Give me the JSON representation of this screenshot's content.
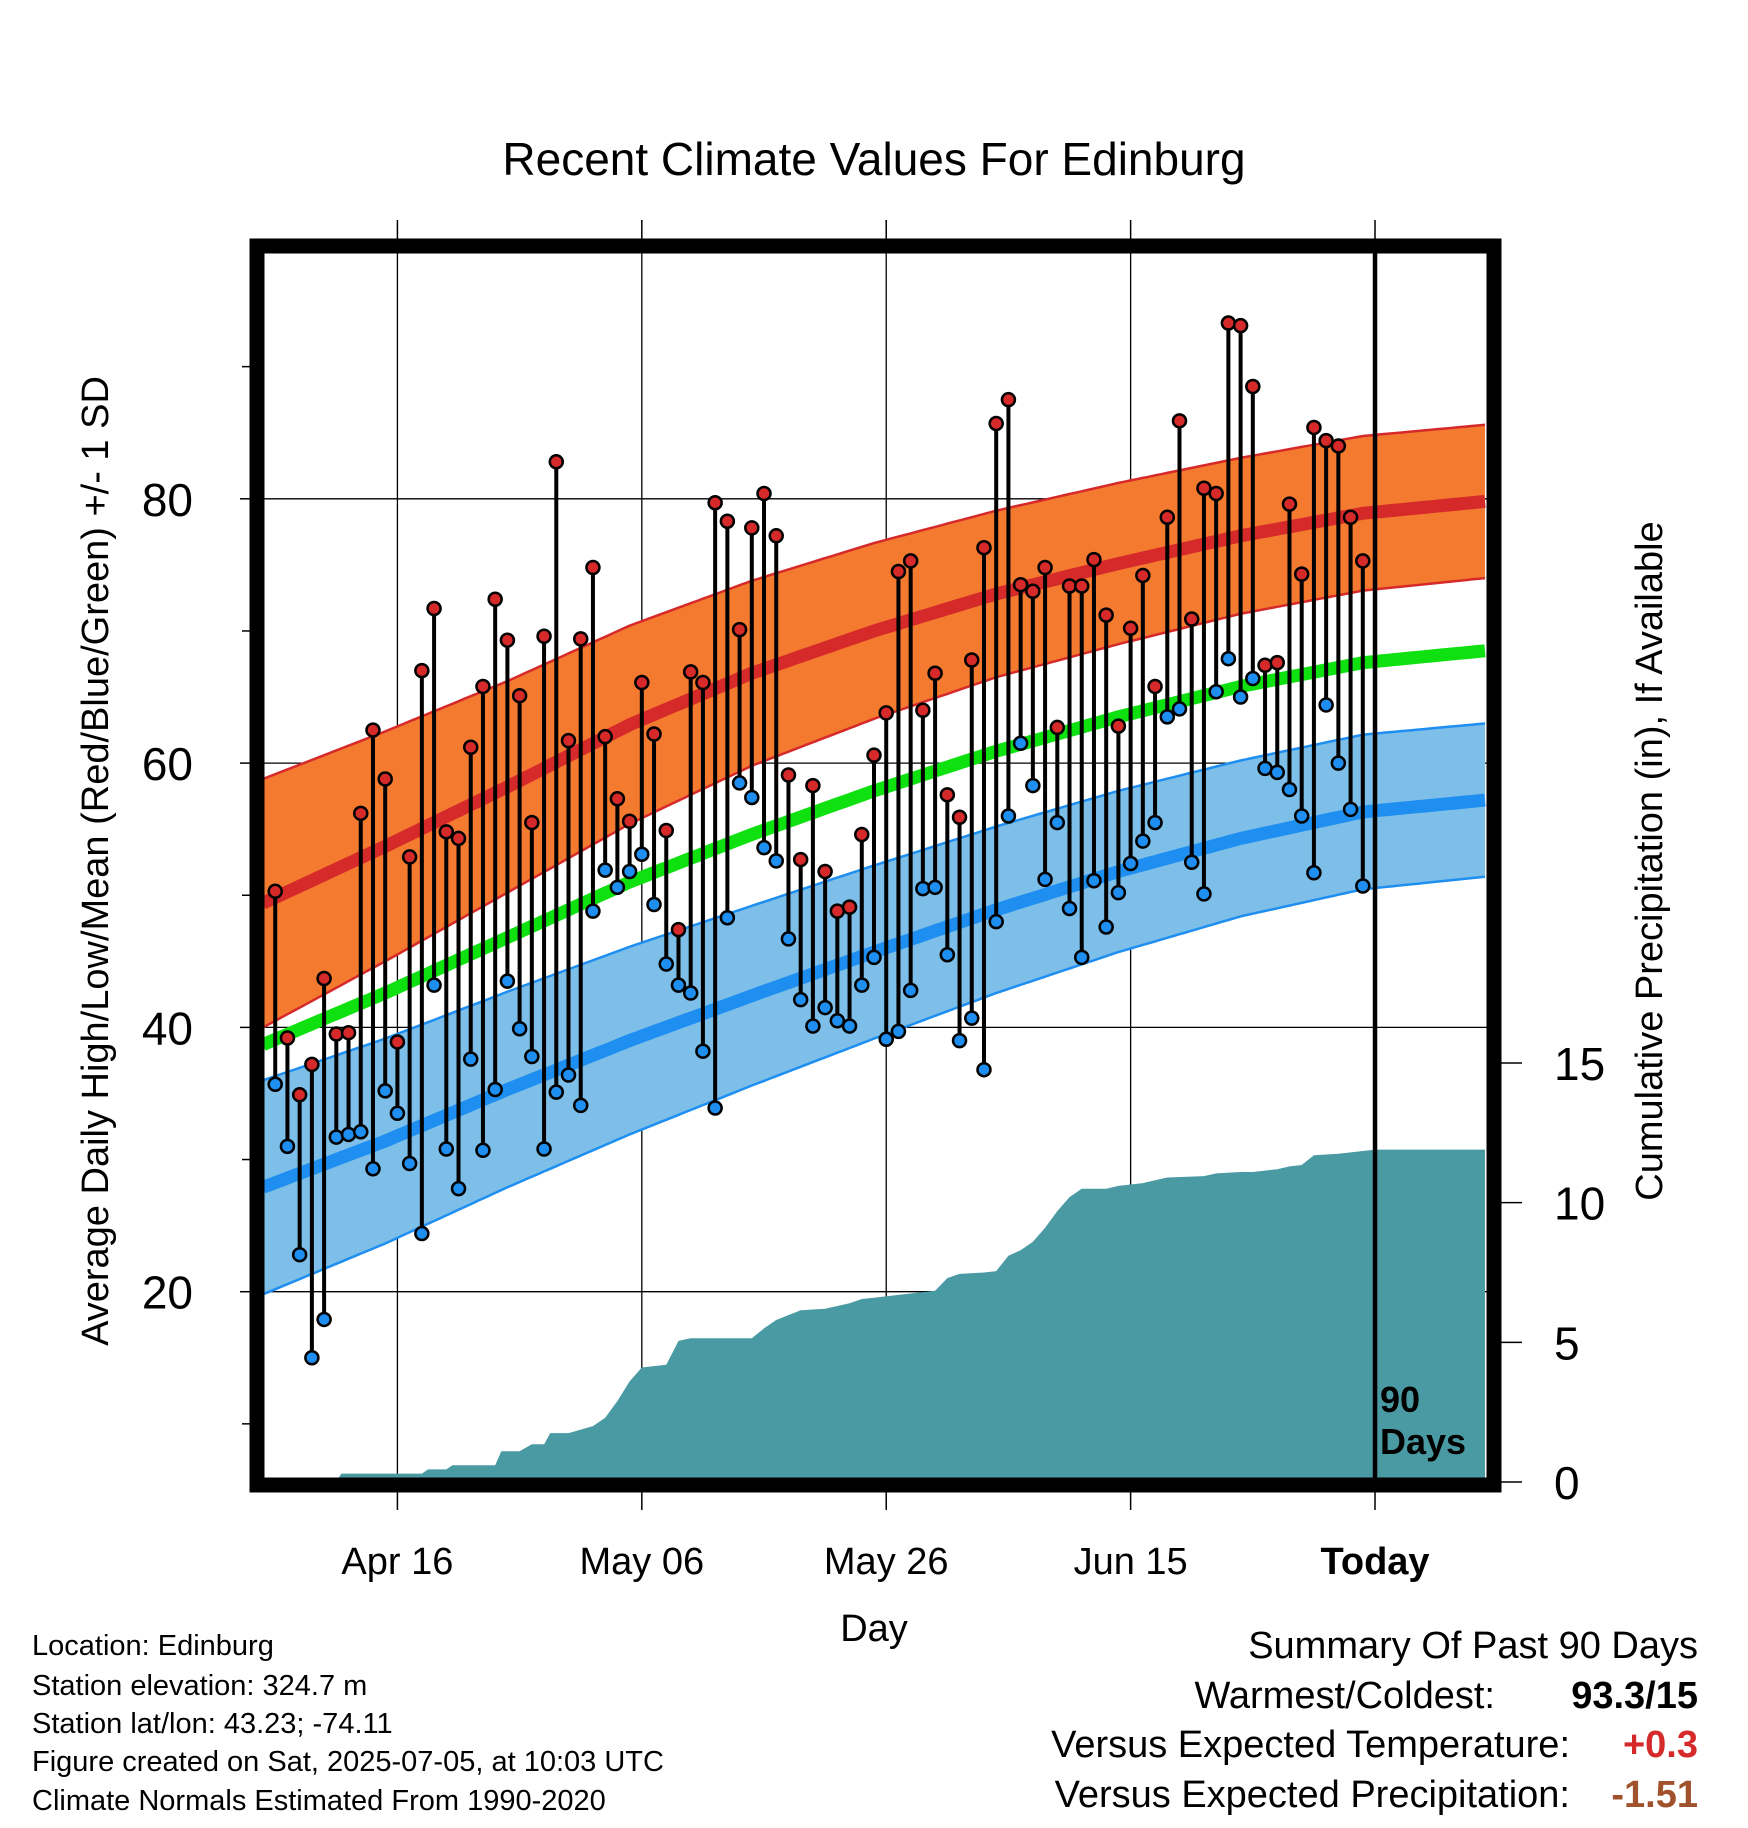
{
  "chart_data": {
    "type": "line",
    "title": "Recent Climate Values For Edinburg",
    "xlabel": "Day",
    "ylabel": "Average Daily High/Low/Mean (Red/Blue/Green) +/- 1 SD",
    "y2label": "Cumulative Precipitation (in), If Available",
    "x_ticks": [
      {
        "day": 11,
        "label": "Apr 16"
      },
      {
        "day": 31,
        "label": "May 06"
      },
      {
        "day": 51,
        "label": "May 26"
      },
      {
        "day": 71,
        "label": "Jun 15"
      },
      {
        "day": 91,
        "label": "Today"
      }
    ],
    "x_range": [
      0,
      100
    ],
    "today_day": 91,
    "today_marker_label": "90\nDays",
    "y_ticks": [
      20,
      40,
      60,
      80
    ],
    "ylim": [
      5.6,
      98.6
    ],
    "y2_ticks": [
      0,
      5,
      10,
      15
    ],
    "y2lim": [
      0,
      44.0
    ],
    "grid": true,
    "colors": {
      "high_band": "#f47a30",
      "high_line": "#d62a2a",
      "low_band": "#7dbfe8",
      "low_line": "#1e8ff0",
      "mean_line": "#0fe00f",
      "precip": "#4a9aa4",
      "high_dot": "#d62a2a",
      "low_dot": "#1e8ff0"
    },
    "normals": {
      "high_mean": [
        [
          0,
          49.4
        ],
        [
          10,
          53.7
        ],
        [
          20,
          58.2
        ],
        [
          30,
          62.9
        ],
        [
          40,
          66.8
        ],
        [
          50,
          70.0
        ],
        [
          60,
          72.8
        ],
        [
          70,
          75.1
        ],
        [
          80,
          77.2
        ],
        [
          90,
          78.9
        ],
        [
          100,
          79.8
        ]
      ],
      "high_sd": [
        [
          0,
          9.4
        ],
        [
          20,
          8.0
        ],
        [
          40,
          7.0
        ],
        [
          60,
          6.3
        ],
        [
          80,
          5.9
        ],
        [
          100,
          5.8
        ]
      ],
      "low_mean": [
        [
          0,
          27.9
        ],
        [
          10,
          31.4
        ],
        [
          20,
          35.3
        ],
        [
          30,
          39.0
        ],
        [
          40,
          42.4
        ],
        [
          50,
          45.7
        ],
        [
          60,
          48.9
        ],
        [
          70,
          51.8
        ],
        [
          80,
          54.3
        ],
        [
          90,
          56.3
        ],
        [
          100,
          57.2
        ]
      ],
      "low_sd": [
        [
          0,
          8.1
        ],
        [
          20,
          7.4
        ],
        [
          40,
          6.8
        ],
        [
          60,
          6.3
        ],
        [
          80,
          5.9
        ],
        [
          100,
          5.8
        ]
      ],
      "daily_mean": [
        [
          0,
          38.7
        ],
        [
          10,
          42.6
        ],
        [
          20,
          46.8
        ],
        [
          30,
          51.0
        ],
        [
          40,
          54.6
        ],
        [
          50,
          57.9
        ],
        [
          60,
          60.9
        ],
        [
          70,
          63.5
        ],
        [
          80,
          65.8
        ],
        [
          90,
          67.6
        ],
        [
          100,
          68.5
        ]
      ]
    },
    "daily": [
      {
        "day": 1,
        "high": 50.3,
        "low": 35.7
      },
      {
        "day": 2,
        "high": 39.2,
        "low": 31.0
      },
      {
        "day": 3,
        "high": 34.9,
        "low": 22.8
      },
      {
        "day": 4,
        "high": 37.2,
        "low": 15.0
      },
      {
        "day": 5,
        "high": 43.7,
        "low": 17.9
      },
      {
        "day": 6,
        "high": 39.5,
        "low": 31.7
      },
      {
        "day": 7,
        "high": 39.6,
        "low": 31.9
      },
      {
        "day": 8,
        "high": 56.2,
        "low": 32.1
      },
      {
        "day": 9,
        "high": 62.5,
        "low": 29.3
      },
      {
        "day": 10,
        "high": 58.8,
        "low": 35.2
      },
      {
        "day": 11,
        "high": 38.9,
        "low": 33.5
      },
      {
        "day": 12,
        "high": 52.9,
        "low": 29.7
      },
      {
        "day": 13,
        "high": 67.0,
        "low": 24.4
      },
      {
        "day": 14,
        "high": 71.7,
        "low": 43.2
      },
      {
        "day": 15,
        "high": 54.8,
        "low": 30.8
      },
      {
        "day": 16,
        "high": 54.3,
        "low": 27.8
      },
      {
        "day": 17,
        "high": 61.2,
        "low": 37.6
      },
      {
        "day": 18,
        "high": 65.8,
        "low": 30.7
      },
      {
        "day": 19,
        "high": 72.4,
        "low": 35.3
      },
      {
        "day": 20,
        "high": 69.3,
        "low": 43.5
      },
      {
        "day": 21,
        "high": 65.1,
        "low": 39.9
      },
      {
        "day": 22,
        "high": 55.5,
        "low": 37.8
      },
      {
        "day": 23,
        "high": 69.6,
        "low": 30.8
      },
      {
        "day": 24,
        "high": 82.8,
        "low": 35.1
      },
      {
        "day": 25,
        "high": 61.7,
        "low": 36.4
      },
      {
        "day": 26,
        "high": 69.4,
        "low": 34.1
      },
      {
        "day": 27,
        "high": 74.8,
        "low": 48.8
      },
      {
        "day": 28,
        "high": 62.0,
        "low": 51.9
      },
      {
        "day": 29,
        "high": 57.3,
        "low": 50.6
      },
      {
        "day": 30,
        "high": 55.6,
        "low": 51.8
      },
      {
        "day": 31,
        "high": 66.1,
        "low": 53.1
      },
      {
        "day": 32,
        "high": 62.2,
        "low": 49.3
      },
      {
        "day": 33,
        "high": 54.9,
        "low": 44.8
      },
      {
        "day": 34,
        "high": 47.4,
        "low": 43.2
      },
      {
        "day": 35,
        "high": 66.9,
        "low": 42.6
      },
      {
        "day": 36,
        "high": 66.1,
        "low": 38.2
      },
      {
        "day": 37,
        "high": 79.7,
        "low": 33.9
      },
      {
        "day": 38,
        "high": 78.3,
        "low": 48.3
      },
      {
        "day": 39,
        "high": 70.1,
        "low": 58.5
      },
      {
        "day": 40,
        "high": 77.8,
        "low": 57.4
      },
      {
        "day": 41,
        "high": 80.4,
        "low": 53.6
      },
      {
        "day": 42,
        "high": 77.2,
        "low": 52.6
      },
      {
        "day": 43,
        "high": 59.1,
        "low": 46.7
      },
      {
        "day": 44,
        "high": 52.7,
        "low": 42.1
      },
      {
        "day": 45,
        "high": 58.3,
        "low": 40.1
      },
      {
        "day": 46,
        "high": 51.8,
        "low": 41.5
      },
      {
        "day": 47,
        "high": 48.8,
        "low": 40.5
      },
      {
        "day": 48,
        "high": 49.1,
        "low": 40.1
      },
      {
        "day": 49,
        "high": 54.6,
        "low": 43.2
      },
      {
        "day": 50,
        "high": 60.6,
        "low": 45.3
      },
      {
        "day": 51,
        "high": 63.8,
        "low": 39.1
      },
      {
        "day": 52,
        "high": 74.5,
        "low": 39.7
      },
      {
        "day": 53,
        "high": 75.3,
        "low": 42.8
      },
      {
        "day": 54,
        "high": 64.0,
        "low": 50.5
      },
      {
        "day": 55,
        "high": 66.8,
        "low": 50.6
      },
      {
        "day": 56,
        "high": 57.6,
        "low": 45.5
      },
      {
        "day": 57,
        "high": 55.9,
        "low": 39.0
      },
      {
        "day": 58,
        "high": 67.8,
        "low": 40.7
      },
      {
        "day": 59,
        "high": 76.3,
        "low": 36.8
      },
      {
        "day": 60,
        "high": 85.7,
        "low": 48.0
      },
      {
        "day": 61,
        "high": 87.5,
        "low": 56.0
      },
      {
        "day": 62,
        "high": 73.5,
        "low": 61.5
      },
      {
        "day": 63,
        "high": 73.0,
        "low": 58.3
      },
      {
        "day": 64,
        "high": 74.8,
        "low": 51.2
      },
      {
        "day": 65,
        "high": 62.7,
        "low": 55.5
      },
      {
        "day": 66,
        "high": 73.4,
        "low": 49.0
      },
      {
        "day": 67,
        "high": 73.4,
        "low": 45.3
      },
      {
        "day": 68,
        "high": 75.4,
        "low": 51.1
      },
      {
        "day": 69,
        "high": 71.2,
        "low": 47.6
      },
      {
        "day": 70,
        "high": 62.8,
        "low": 50.2
      },
      {
        "day": 71,
        "high": 70.2,
        "low": 52.4
      },
      {
        "day": 72,
        "high": 74.2,
        "low": 54.1
      },
      {
        "day": 73,
        "high": 65.8,
        "low": 55.5
      },
      {
        "day": 74,
        "high": 78.6,
        "low": 63.5
      },
      {
        "day": 75,
        "high": 85.9,
        "low": 64.1
      },
      {
        "day": 76,
        "high": 70.9,
        "low": 52.5
      },
      {
        "day": 77,
        "high": 80.8,
        "low": 50.1
      },
      {
        "day": 78,
        "high": 80.4,
        "low": 65.4
      },
      {
        "day": 79,
        "high": 93.3,
        "low": 67.9
      },
      {
        "day": 80,
        "high": 93.1,
        "low": 65.0
      },
      {
        "day": 81,
        "high": 88.5,
        "low": 66.4
      },
      {
        "day": 82,
        "high": 67.4,
        "low": 59.6
      },
      {
        "day": 83,
        "high": 67.6,
        "low": 59.3
      },
      {
        "day": 84,
        "high": 79.6,
        "low": 58.0
      },
      {
        "day": 85,
        "high": 74.3,
        "low": 56.0
      },
      {
        "day": 86,
        "high": 85.4,
        "low": 51.7
      },
      {
        "day": 87,
        "high": 84.4,
        "low": 64.4
      },
      {
        "day": 88,
        "high": 84.0,
        "low": 60.0
      },
      {
        "day": 89,
        "high": 78.6,
        "low": 56.5
      },
      {
        "day": 90,
        "high": 75.3,
        "low": 50.7
      }
    ],
    "precip_cumulative": [
      [
        6,
        0.0
      ],
      [
        6.4,
        0.3
      ],
      [
        13,
        0.3
      ],
      [
        13.5,
        0.45
      ],
      [
        15,
        0.45
      ],
      [
        15.5,
        0.6
      ],
      [
        19,
        0.6
      ],
      [
        19.5,
        1.1
      ],
      [
        21,
        1.1
      ],
      [
        22,
        1.35
      ],
      [
        23,
        1.35
      ],
      [
        23.5,
        1.75
      ],
      [
        25,
        1.75
      ],
      [
        27,
        2.0
      ],
      [
        28,
        2.3
      ],
      [
        29,
        2.9
      ],
      [
        30,
        3.6
      ],
      [
        31,
        4.1
      ],
      [
        32,
        4.15
      ],
      [
        33,
        4.2
      ],
      [
        34,
        5.05
      ],
      [
        35,
        5.15
      ],
      [
        40,
        5.15
      ],
      [
        41,
        5.5
      ],
      [
        42,
        5.8
      ],
      [
        44,
        6.15
      ],
      [
        46,
        6.2
      ],
      [
        47,
        6.3
      ],
      [
        48,
        6.4
      ],
      [
        49,
        6.55
      ],
      [
        50,
        6.6
      ],
      [
        52,
        6.7
      ],
      [
        53,
        6.75
      ],
      [
        55,
        6.85
      ],
      [
        56,
        7.3
      ],
      [
        57,
        7.45
      ],
      [
        59,
        7.5
      ],
      [
        60,
        7.55
      ],
      [
        61,
        8.1
      ],
      [
        62,
        8.3
      ],
      [
        63,
        8.6
      ],
      [
        64,
        9.1
      ],
      [
        65,
        9.7
      ],
      [
        66,
        10.2
      ],
      [
        67,
        10.5
      ],
      [
        69,
        10.5
      ],
      [
        70,
        10.6
      ],
      [
        71,
        10.65
      ],
      [
        72,
        10.7
      ],
      [
        73,
        10.8
      ],
      [
        74,
        10.9
      ],
      [
        77,
        10.95
      ],
      [
        78,
        11.05
      ],
      [
        80,
        11.1
      ],
      [
        81,
        11.1
      ],
      [
        82,
        11.15
      ],
      [
        83,
        11.2
      ],
      [
        84,
        11.3
      ],
      [
        85,
        11.35
      ],
      [
        86,
        11.7
      ],
      [
        88,
        11.75
      ],
      [
        89,
        11.8
      ],
      [
        90,
        11.85
      ],
      [
        91,
        11.9
      ],
      [
        100,
        11.9
      ]
    ]
  },
  "info": {
    "location": "Location: Edinburg",
    "elevation": "Station elevation: 324.7 m",
    "latlon": "Station lat/lon: 43.23; -74.11",
    "created": "Figure created on Sat, 2025-07-05, at 10:03 UTC",
    "normals": "Climate Normals Estimated From 1990-2020"
  },
  "summary": {
    "title": "Summary Of Past 90 Days",
    "warm_cold_label": "Warmest/Coldest:",
    "warm_cold_value": "93.3/15",
    "temp_label": "Versus Expected Temperature:",
    "temp_value": "+0.3",
    "temp_color": "#d62a2a",
    "precip_label": "Versus Expected Precipitation:",
    "precip_value": "-1.51",
    "precip_color": "#a0522d"
  }
}
